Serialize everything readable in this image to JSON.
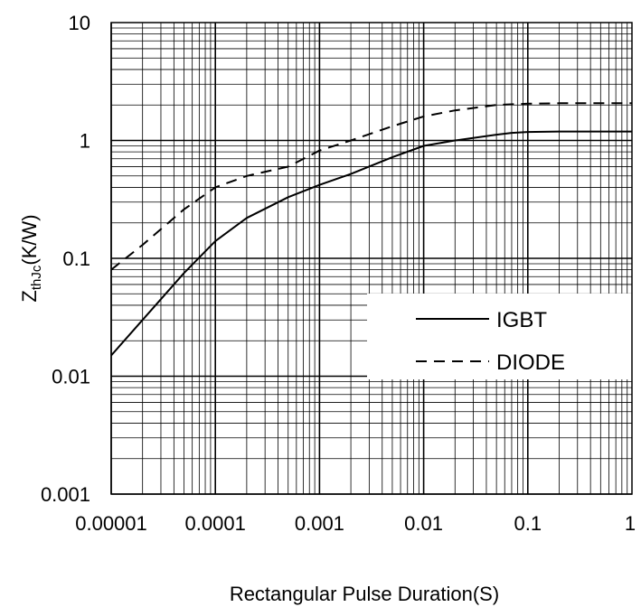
{
  "chart_data": {
    "type": "line",
    "x_scale": "log",
    "y_scale": "log",
    "xlim": [
      1e-05,
      1
    ],
    "ylim": [
      0.001,
      10
    ],
    "grid": true,
    "legend_position": "right",
    "xlabel": "Rectangular Pulse Duration(S)",
    "ylabel": {
      "main": "Z",
      "sub": "thJc",
      "rest": "(K/W)"
    },
    "x_tick_labels": [
      "0.00001",
      "0.0001",
      "0.001",
      "0.01",
      "0.1",
      "1"
    ],
    "y_tick_labels": [
      "0.001",
      "0.01",
      "0.1",
      "1",
      "10"
    ],
    "series": [
      {
        "name": "IGBT",
        "style": "solid",
        "color": "#000000",
        "x": [
          1e-05,
          2e-05,
          5e-05,
          0.0001,
          0.0002,
          0.0005,
          0.001,
          0.002,
          0.005,
          0.01,
          0.02,
          0.05,
          0.07,
          0.1,
          0.2,
          0.5,
          1
        ],
        "y": [
          0.015,
          0.03,
          0.075,
          0.14,
          0.22,
          0.33,
          0.42,
          0.52,
          0.72,
          0.9,
          1.0,
          1.12,
          1.16,
          1.18,
          1.19,
          1.19,
          1.19
        ]
      },
      {
        "name": "DIODE",
        "style": "dashed",
        "color": "#000000",
        "x": [
          1e-05,
          2e-05,
          5e-05,
          0.0001,
          0.0002,
          0.0005,
          0.001,
          0.002,
          0.005,
          0.01,
          0.02,
          0.05,
          0.1,
          0.2,
          0.5,
          1
        ],
        "y": [
          0.08,
          0.13,
          0.26,
          0.4,
          0.5,
          0.6,
          0.82,
          1.0,
          1.32,
          1.6,
          1.8,
          2.0,
          2.05,
          2.07,
          2.07,
          2.07
        ]
      }
    ]
  }
}
